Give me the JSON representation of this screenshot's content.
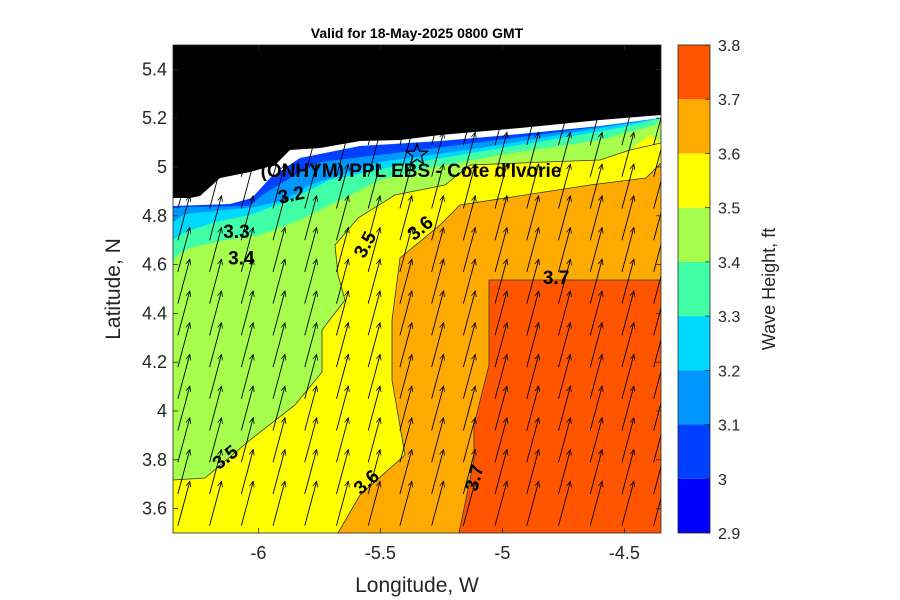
{
  "chart_data": {
    "type": "heatmap",
    "title": "Valid for 18-May-2025 0800 GMT",
    "xlabel": "Longitude, W",
    "ylabel": "Latitude, N",
    "colorbar_label": "Wave Height, ft",
    "xlim": [
      -6.35,
      -4.35
    ],
    "ylim": [
      3.5,
      5.5
    ],
    "xticks": [
      -6,
      -5.5,
      -5,
      -4.5
    ],
    "xtick_labels": [
      "-6",
      "-5.5",
      "-5",
      "-4.5"
    ],
    "yticks": [
      3.6,
      3.8,
      4,
      4.2,
      4.4,
      4.6,
      4.8,
      5,
      5.2,
      5.4
    ],
    "ytick_labels": [
      "3.6",
      "3.8",
      "4",
      "4.2",
      "4.4",
      "4.6",
      "4.8",
      "5",
      "5.2",
      "5.4"
    ],
    "colorbar": {
      "levels": [
        2.9,
        3,
        3.1,
        3.2,
        3.3,
        3.4,
        3.5,
        3.6,
        3.7,
        3.8
      ],
      "tick_labels": [
        "2.9",
        "3",
        "3.1",
        "3.2",
        "3.3",
        "3.4",
        "3.5",
        "3.6",
        "3.7",
        "3.8"
      ],
      "colors": [
        "#0000ff",
        "#0040ff",
        "#0096ff",
        "#00d9ff",
        "#40ffa6",
        "#a6ff4d",
        "#ffff00",
        "#ffaa00",
        "#ff5500"
      ]
    },
    "land_color": "#000000",
    "coast_color": "#ffffff",
    "contour_labels": [
      {
        "text": "3.2",
        "x": -5.86,
        "y": 4.86,
        "angle": -12
      },
      {
        "text": "3.3",
        "x": -6.09,
        "y": 4.71,
        "angle": 0
      },
      {
        "text": "3.4",
        "x": -6.07,
        "y": 4.6,
        "angle": 0
      },
      {
        "text": "3.5",
        "x": -5.54,
        "y": 4.67,
        "angle": -62
      },
      {
        "text": "3.6",
        "x": -5.32,
        "y": 4.73,
        "angle": -40
      },
      {
        "text": "3.7",
        "x": -4.78,
        "y": 4.52,
        "angle": 0
      },
      {
        "text": "3.5",
        "x": -6.12,
        "y": 3.79,
        "angle": -38
      },
      {
        "text": "3.6",
        "x": -5.54,
        "y": 3.69,
        "angle": -42
      },
      {
        "text": "3.7",
        "x": -5.09,
        "y": 3.72,
        "angle": -75
      }
    ],
    "site": {
      "label": "(ONHYM) PPL EBS - Cote d'Ivorie",
      "lon": -5.35,
      "lat": 5.05
    },
    "vector_field": {
      "description": "wave direction arrows",
      "direction_deg_from_north": 15,
      "grid_lon": [
        -6.33,
        -6.2,
        -6.07,
        -5.94,
        -5.81,
        -5.68,
        -5.55,
        -5.42,
        -5.29,
        -5.16,
        -5.03,
        -4.9,
        -4.77,
        -4.64,
        -4.51,
        -4.38
      ],
      "grid_lat": [
        3.53,
        3.66,
        3.79,
        3.92,
        4.05,
        4.18,
        4.31,
        4.44,
        4.57,
        4.7,
        4.83,
        4.96,
        5.09
      ]
    }
  }
}
